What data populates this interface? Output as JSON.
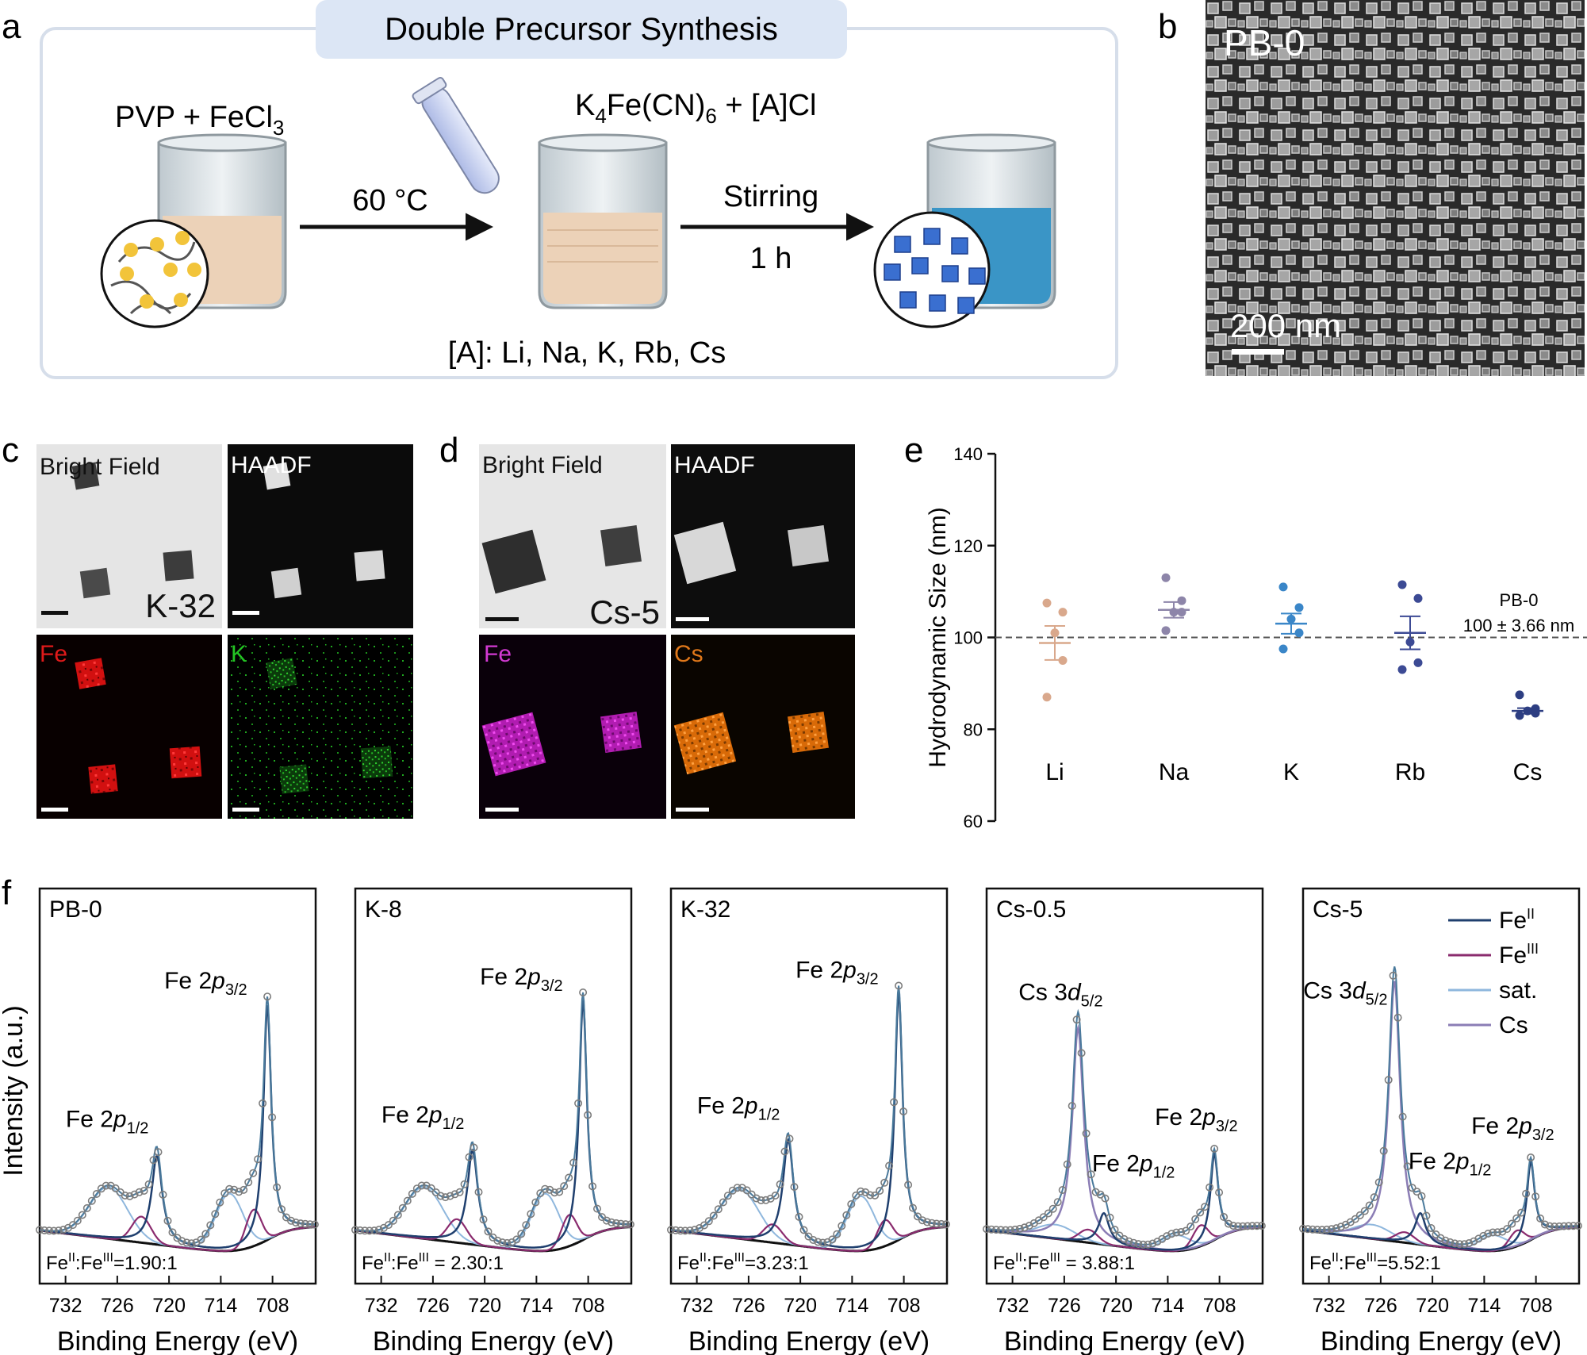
{
  "panel_labels": {
    "a": "a",
    "b": "b",
    "c": "c",
    "d": "d",
    "e": "e",
    "f": "f"
  },
  "panel_a": {
    "title": "Double Precursor Synthesis",
    "reagent1_main": "PVP + FeCl",
    "reagent1_sub": "3",
    "reagent2_k": "K",
    "reagent2_sub4": "4",
    "reagent2_mid": "Fe(CN)",
    "reagent2_sub6": "6",
    "reagent2_end": " + [A]Cl",
    "step1": "60 °C",
    "step2": "Stirring",
    "step2_time": "1 h",
    "cations": "[A]: Li, Na, K, Rb, Cs"
  },
  "panel_b": {
    "sample": "PB-0",
    "scale": "200 nm"
  },
  "panel_c": {
    "bright_field": "Bright Field",
    "haadf": "HAADF",
    "sample": "K-32",
    "map1": "Fe",
    "map2": "K"
  },
  "panel_d": {
    "bright_field": "Bright Field",
    "haadf": "HAADF",
    "sample": "Cs-5",
    "map1": "Fe",
    "map2": "Cs"
  },
  "panel_f_labels": {
    "fe_p32_main": "Fe 2",
    "fe_p32_p": "p",
    "fe_p32_sub": "3/2",
    "fe_p12_main": "Fe 2",
    "fe_p12_p": "p",
    "fe_p12_sub": "1/2",
    "cs_main": "Cs 3",
    "cs_d": "d",
    "cs_sub": "5/2",
    "ratio_prefix": "Fe",
    "ratio_sup2": "II",
    "ratio_colon": ":Fe",
    "ratio_sup3": "III"
  },
  "colors": {
    "fe2": "#1f3f6e",
    "fe3": "#8a2b6e",
    "sat": "#8fb7dd",
    "cs": "#8b7db5",
    "envelope": "#4a7a9c",
    "background": "#111111",
    "li": "#d9a88c",
    "na": "#8d85a9",
    "k": "#3a86c8",
    "rb": "#3c4a94",
    "cs_pt": "#2d3e82",
    "title_box": "#dce6f5"
  },
  "chart_data": [
    {
      "panel": "e",
      "type": "scatter",
      "ylabel": "Hydrodynamic Size (nm)",
      "ylim": [
        60,
        140
      ],
      "yticks": [
        60,
        80,
        100,
        120,
        140
      ],
      "categories": [
        "Li",
        "Na",
        "K",
        "Rb",
        "Cs"
      ],
      "series": [
        {
          "category": "Li",
          "values": [
            107.5,
            105.5,
            101,
            95,
            87
          ],
          "mean": 98.8,
          "sem": 3.7
        },
        {
          "category": "Na",
          "values": [
            113,
            108,
            105.5,
            105.5,
            101.5
          ],
          "mean": 106.0,
          "sem": 1.7
        },
        {
          "category": "K",
          "values": [
            111,
            106.5,
            104,
            101,
            97.5
          ],
          "mean": 103.0,
          "sem": 2.2
        },
        {
          "category": "Rb",
          "values": [
            111.5,
            108.5,
            99,
            94.5,
            93
          ],
          "mean": 101.0,
          "sem": 3.6
        },
        {
          "category": "Cs",
          "values": [
            87.5,
            84.5,
            84,
            83.5,
            83
          ],
          "mean": 84.0,
          "sem": 0.6
        }
      ],
      "reference": {
        "value": 100,
        "label": "PB-0",
        "sublabel": "100 ± 3.66 nm"
      },
      "grid": false
    },
    {
      "panel": "f",
      "type": "line",
      "xlabel": "Binding Energy (eV)",
      "ylabel": "Intensity (a.u.)",
      "xlim": [
        735,
        703
      ],
      "xticks": [
        732,
        726,
        720,
        714,
        708
      ],
      "legend": {
        "position": "top-right",
        "entries": [
          "Fe",
          "Fe",
          "sat.",
          "Cs"
        ],
        "superscripts": [
          "II",
          "III",
          "",
          ""
        ]
      },
      "subplots": [
        {
          "name": "PB-0",
          "ratio": "=1.90:1",
          "fe2_p32": 0.9,
          "fe2_p12": 0.34,
          "fe3_p32": 0.14,
          "fe3_p12": 0.1,
          "sat": 0.22,
          "cs": 0
        },
        {
          "name": "K-8",
          "ratio": " = 2.30:1",
          "fe2_p32": 0.92,
          "fe2_p12": 0.36,
          "fe3_p32": 0.12,
          "fe3_p12": 0.09,
          "sat": 0.22,
          "cs": 0
        },
        {
          "name": "K-32",
          "ratio": "=3.23:1",
          "fe2_p32": 0.95,
          "fe2_p12": 0.4,
          "fe3_p32": 0.1,
          "fe3_p12": 0.07,
          "sat": 0.21,
          "cs": 0
        },
        {
          "name": "Cs-0.5",
          "ratio": " = 3.88:1",
          "fe2_p32": 0.33,
          "fe2_p12": 0.12,
          "fe3_p32": 0.08,
          "fe3_p12": 0.05,
          "sat": 0.06,
          "cs": 0.82
        },
        {
          "name": "Cs-5",
          "ratio": "=5.52:1",
          "fe2_p32": 0.3,
          "fe2_p12": 0.12,
          "fe3_p32": 0.06,
          "fe3_p12": 0.04,
          "sat": 0.06,
          "cs": 1.0
        }
      ]
    }
  ]
}
